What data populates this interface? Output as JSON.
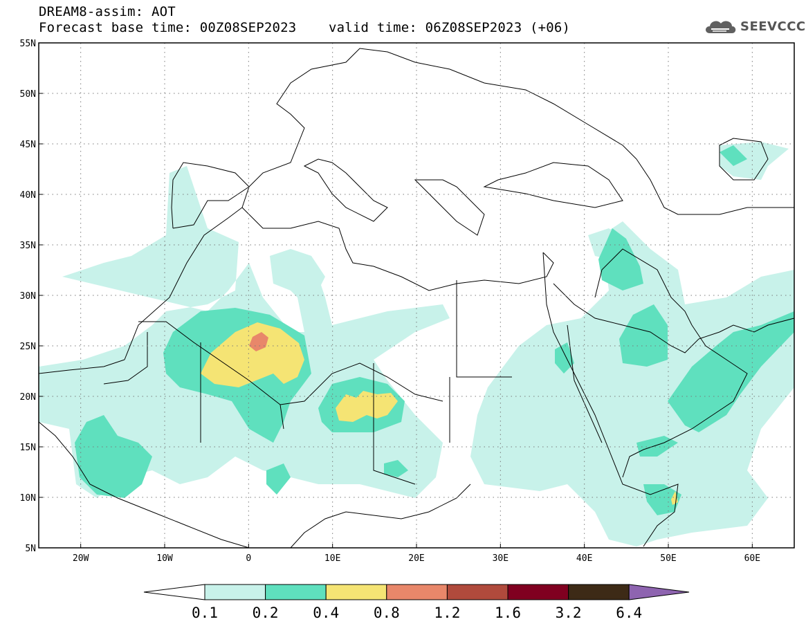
{
  "header": {
    "line1": "DREAM8-assim: AOT",
    "line2": "Forecast base time: 00Z08SEP2023    valid time: 06Z08SEP2023 (+06)"
  },
  "logo": {
    "text": "SEEVCCC",
    "icon": "cloud-icon"
  },
  "map": {
    "lon_range": [
      -25,
      65
    ],
    "lat_range": [
      5,
      55
    ],
    "lat_labels": [
      "55N",
      "50N",
      "45N",
      "40N",
      "35N",
      "30N",
      "25N",
      "20N",
      "15N",
      "10N",
      "5N"
    ],
    "lon_labels": [
      "20W",
      "10W",
      "0",
      "10E",
      "20E",
      "30E",
      "40E",
      "50E",
      "60E"
    ],
    "gridlines": "dotted",
    "colors": {
      "level_0_1": "#c8f2ea",
      "level_0_2": "#5fe0be",
      "level_0_4": "#f5e474",
      "level_0_8": "#e8876a",
      "land_border": "#000000",
      "frame": "#000000"
    }
  },
  "colorbar": {
    "labels": [
      "0.1",
      "0.2",
      "0.4",
      "0.8",
      "1.2",
      "1.6",
      "3.2",
      "6.4"
    ],
    "colors": [
      "#c8f2ea",
      "#5fe0be",
      "#f5e474",
      "#e8876a",
      "#b04a3c",
      "#800020",
      "#3d2a16"
    ],
    "under_color": "#ffffff",
    "over_color": "#8e64b0"
  }
}
